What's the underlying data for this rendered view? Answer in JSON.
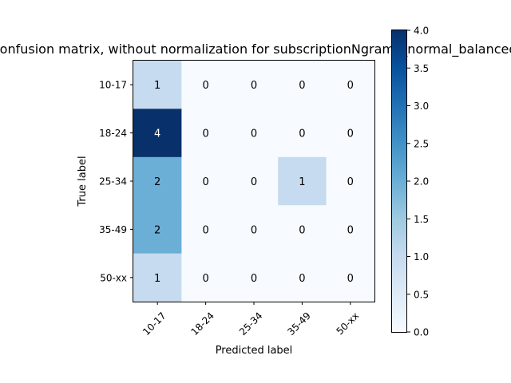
{
  "chart_data": {
    "type": "heatmap",
    "title": "Confusion matrix, without normalization for subscriptionNgrams_normal_balanced",
    "xlabel": "Predicted label",
    "ylabel": "True label",
    "x_categories": [
      "10-17",
      "18-24",
      "25-34",
      "35-49",
      "50-xx"
    ],
    "y_categories": [
      "10-17",
      "18-24",
      "25-34",
      "35-49",
      "50-xx"
    ],
    "values": [
      [
        1,
        0,
        0,
        0,
        0
      ],
      [
        4,
        0,
        0,
        0,
        0
      ],
      [
        2,
        0,
        0,
        1,
        0
      ],
      [
        2,
        0,
        0,
        0,
        0
      ],
      [
        1,
        0,
        0,
        0,
        0
      ]
    ],
    "colormap": "Blues",
    "color_range": [
      0,
      4
    ],
    "colorbar_ticks": [
      "0.0",
      "0.5",
      "1.0",
      "1.5",
      "2.0",
      "2.5",
      "3.0",
      "3.5",
      "4.0"
    ]
  }
}
